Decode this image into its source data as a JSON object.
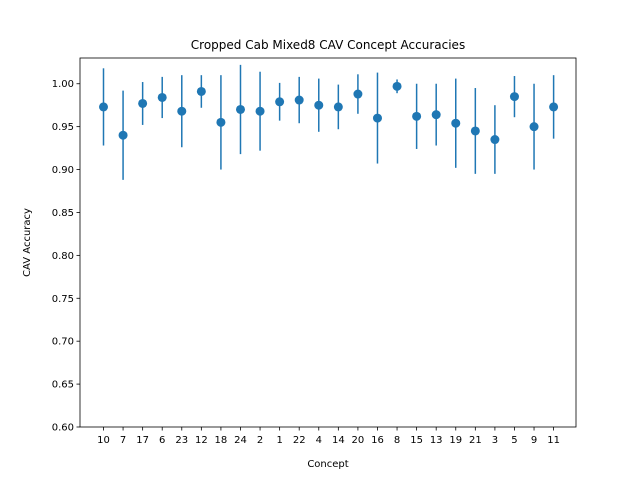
{
  "chart_data": {
    "type": "scatter",
    "title": "Cropped Cab Mixed8 CAV Concept Accuracies",
    "xlabel": "Concept",
    "ylabel": "CAV Accuracy",
    "ylim": [
      0.6,
      1.03
    ],
    "yticks": [
      "0.60",
      "0.65",
      "0.70",
      "0.75",
      "0.80",
      "0.85",
      "0.90",
      "0.95",
      "1.00"
    ],
    "grid": false,
    "color": "#1f77b4",
    "categories": [
      "10",
      "7",
      "17",
      "6",
      "23",
      "12",
      "18",
      "24",
      "2",
      "1",
      "22",
      "4",
      "14",
      "20",
      "16",
      "8",
      "15",
      "13",
      "19",
      "21",
      "3",
      "5",
      "9",
      "11"
    ],
    "values": [
      0.973,
      0.94,
      0.977,
      0.984,
      0.968,
      0.991,
      0.955,
      0.97,
      0.968,
      0.979,
      0.981,
      0.975,
      0.973,
      0.988,
      0.96,
      0.997,
      0.962,
      0.964,
      0.954,
      0.945,
      0.935,
      0.985,
      0.95,
      0.973
    ],
    "errors": [
      0.045,
      0.052,
      0.025,
      0.024,
      0.042,
      0.019,
      0.055,
      0.052,
      0.046,
      0.022,
      0.027,
      0.031,
      0.026,
      0.023,
      0.053,
      0.008,
      0.038,
      0.036,
      0.052,
      0.05,
      0.04,
      0.024,
      0.05,
      0.037
    ]
  }
}
